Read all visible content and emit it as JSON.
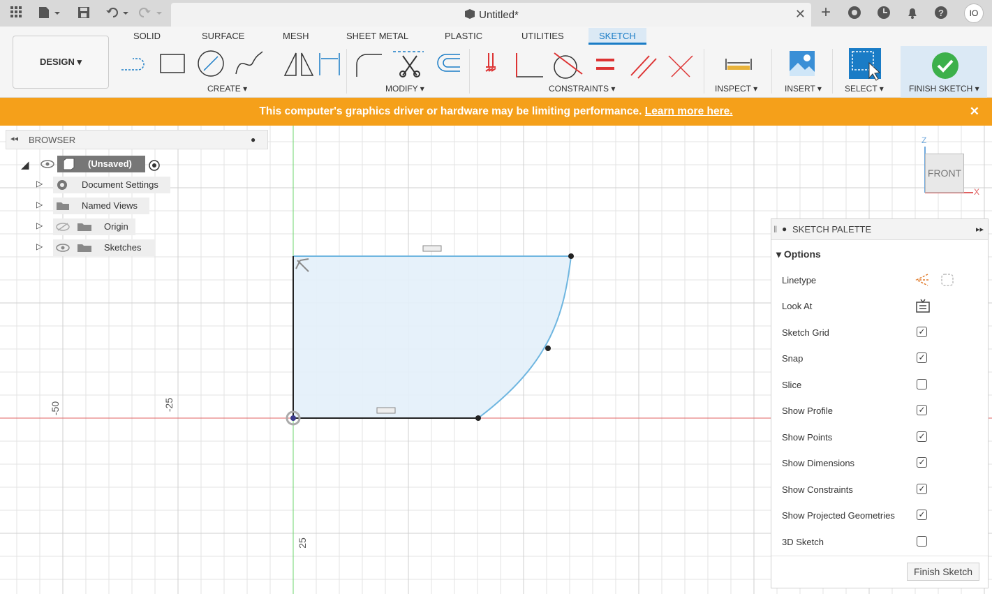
{
  "titlebar": {
    "doc_title": "Untitled*",
    "close": "✕",
    "avatar": "IO"
  },
  "ribbon": {
    "design_label": "DESIGN ▾",
    "tabs": [
      "SOLID",
      "SURFACE",
      "MESH",
      "SHEET METAL",
      "PLASTIC",
      "UTILITIES",
      "SKETCH"
    ],
    "groups": {
      "create": "CREATE ▾",
      "modify": "MODIFY ▾",
      "constraints": "CONSTRAINTS ▾",
      "inspect": "INSPECT ▾",
      "insert": "INSERT ▾",
      "select": "SELECT ▾",
      "finish": "FINISH SKETCH ▾"
    }
  },
  "banner": {
    "text": "This computer's graphics driver or hardware may be limiting performance.",
    "link": "Learn more here.",
    "close": "✕"
  },
  "browser": {
    "title": "BROWSER",
    "root_label": "(Unsaved)",
    "items": [
      "Document Settings",
      "Named Views",
      "Origin",
      "Sketches"
    ]
  },
  "canvas": {
    "axis_labels": [
      "-50",
      "-25",
      "25"
    ]
  },
  "viewcube": {
    "face": "FRONT",
    "z": "Z",
    "x": "X"
  },
  "palette": {
    "title": "SKETCH PALETTE",
    "section": "▾ Options",
    "rows": [
      {
        "label": "Linetype",
        "value": "icons"
      },
      {
        "label": "Look At",
        "value": "icon"
      },
      {
        "label": "Sketch Grid",
        "checked": true
      },
      {
        "label": "Snap",
        "checked": true
      },
      {
        "label": "Slice",
        "checked": false
      },
      {
        "label": "Show Profile",
        "checked": true
      },
      {
        "label": "Show Points",
        "checked": true
      },
      {
        "label": "Show Dimensions",
        "checked": true
      },
      {
        "label": "Show Constraints",
        "checked": true
      },
      {
        "label": "Show Projected Geometries",
        "checked": true
      },
      {
        "label": "3D Sketch",
        "checked": false
      }
    ],
    "finish_button": "Finish Sketch"
  },
  "colors": {
    "accent": "#1a7cc6",
    "banner": "#f5a01a",
    "profile_fill": "#e3f0fa",
    "sketch_line": "#6fb6e0",
    "x_axis": "#e06060",
    "y_axis": "#6cd66c"
  }
}
